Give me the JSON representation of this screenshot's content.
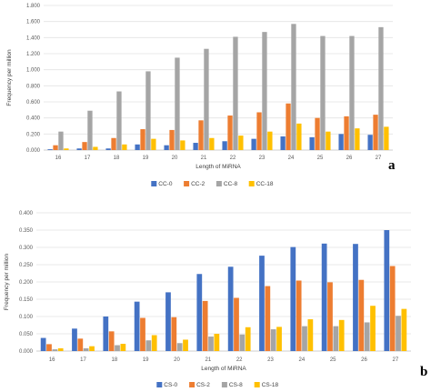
{
  "chart_data": [
    {
      "type": "bar",
      "panel_label": "a",
      "xlabel": "Length of MiRNA",
      "ylabel": "Frequency per million",
      "ylim": [
        0,
        1.8
      ],
      "y_ticks": [
        "0.000",
        "0.200",
        "0.400",
        "0.600",
        "0.800",
        "1.000",
        "1.200",
        "1.400",
        "1.600",
        "1.800"
      ],
      "categories": [
        "16",
        "17",
        "18",
        "19",
        "20",
        "21",
        "22",
        "23",
        "24",
        "25",
        "26",
        "27"
      ],
      "grid": true,
      "legend_position": "bottom",
      "series": [
        {
          "name": "CC-0",
          "color": "#4472C4",
          "values": [
            0.01,
            0.02,
            0.02,
            0.07,
            0.06,
            0.09,
            0.11,
            0.14,
            0.17,
            0.16,
            0.2,
            0.19
          ]
        },
        {
          "name": "CC-2",
          "color": "#ED7D31",
          "values": [
            0.06,
            0.1,
            0.15,
            0.26,
            0.25,
            0.37,
            0.43,
            0.47,
            0.58,
            0.4,
            0.42,
            0.44
          ]
        },
        {
          "name": "CC-8",
          "color": "#A5A5A5",
          "values": [
            0.23,
            0.49,
            0.73,
            0.98,
            1.15,
            1.26,
            1.41,
            1.47,
            1.57,
            1.42,
            1.42,
            1.53
          ]
        },
        {
          "name": "CC-18",
          "color": "#FFC000",
          "values": [
            0.02,
            0.04,
            0.07,
            0.14,
            0.12,
            0.15,
            0.18,
            0.23,
            0.33,
            0.23,
            0.27,
            0.29
          ]
        }
      ]
    },
    {
      "type": "bar",
      "panel_label": "b",
      "xlabel": "Length of MiRNA",
      "ylabel": "Frequency per million",
      "ylim": [
        0,
        0.4
      ],
      "y_ticks": [
        "0.000",
        "0.050",
        "0.100",
        "0.150",
        "0.200",
        "0.250",
        "0.300",
        "0.350",
        "0.400"
      ],
      "categories": [
        "16",
        "17",
        "18",
        "19",
        "20",
        "21",
        "22",
        "23",
        "24",
        "25",
        "26",
        "27"
      ],
      "grid": true,
      "legend_position": "bottom",
      "series": [
        {
          "name": "CS-0",
          "color": "#4472C4",
          "values": [
            0.038,
            0.065,
            0.1,
            0.143,
            0.17,
            0.223,
            0.244,
            0.276,
            0.301,
            0.311,
            0.31,
            0.35
          ]
        },
        {
          "name": "CS-2",
          "color": "#ED7D31",
          "values": [
            0.02,
            0.036,
            0.057,
            0.096,
            0.098,
            0.145,
            0.154,
            0.188,
            0.204,
            0.199,
            0.206,
            0.246
          ]
        },
        {
          "name": "CS-8",
          "color": "#A5A5A5",
          "values": [
            0.005,
            0.008,
            0.017,
            0.031,
            0.023,
            0.042,
            0.048,
            0.063,
            0.072,
            0.072,
            0.083,
            0.102
          ]
        },
        {
          "name": "CS-18",
          "color": "#FFC000",
          "values": [
            0.008,
            0.014,
            0.021,
            0.046,
            0.033,
            0.05,
            0.069,
            0.07,
            0.092,
            0.09,
            0.131,
            0.122
          ]
        }
      ]
    }
  ]
}
